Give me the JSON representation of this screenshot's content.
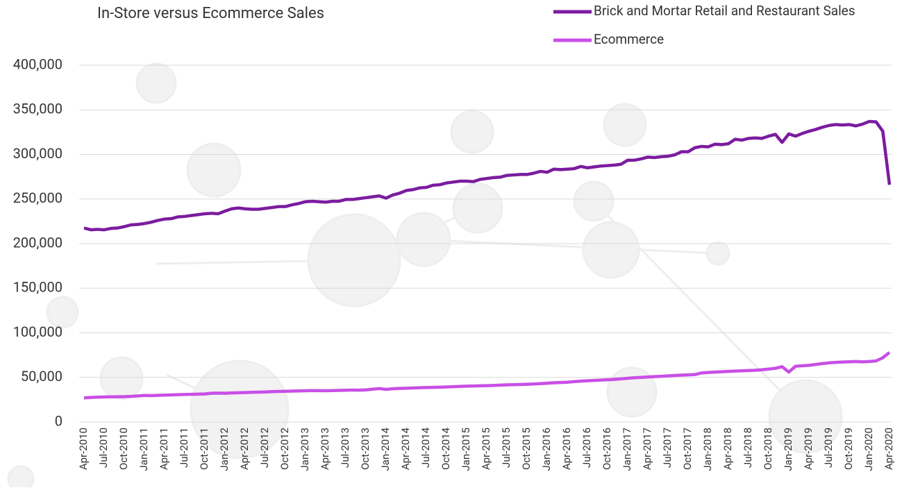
{
  "chart_data": {
    "type": "line",
    "title": "In-Store versus Ecommerce Sales",
    "categories": [
      "Apr-2010",
      null,
      null,
      "Jul-2010",
      null,
      null,
      "Oct-2010",
      null,
      null,
      "Jan-2011",
      null,
      null,
      "Apr-2011",
      null,
      null,
      "Jul-2011",
      null,
      null,
      "Oct-2011",
      null,
      null,
      "Jan-2012",
      null,
      null,
      "Apr-2012",
      null,
      null,
      "Jul-2012",
      null,
      null,
      "Oct-2012",
      null,
      null,
      "Jan-2013",
      null,
      null,
      "Apr-2013",
      null,
      null,
      "Jul-2013",
      null,
      null,
      "Oct-2013",
      null,
      null,
      "Jan-2014",
      null,
      null,
      "Apr-2014",
      null,
      null,
      "Jul-2014",
      null,
      null,
      "Oct-2014",
      null,
      null,
      "Jan-2015",
      null,
      null,
      "Apr-2015",
      null,
      null,
      "Jul-2015",
      null,
      null,
      "Oct-2015",
      null,
      null,
      "Jan-2016",
      null,
      null,
      "Apr-2016",
      null,
      null,
      "Jul-2016",
      null,
      null,
      "Oct-2016",
      null,
      null,
      "Jan-2017",
      null,
      null,
      "Apr-2017",
      null,
      null,
      "Jul-2017",
      null,
      null,
      "Oct-2017",
      null,
      null,
      "Jan-2018",
      null,
      null,
      "Apr-2018",
      null,
      null,
      "Jul-2018",
      null,
      null,
      "Oct-2018",
      null,
      null,
      "Jan-2019",
      null,
      null,
      "Apr-2019",
      null,
      null,
      "Jul-2019",
      null,
      null,
      "Oct-2019",
      null,
      null,
      "Jan-2020",
      null,
      null,
      "Apr-2020"
    ],
    "series": [
      {
        "name": "Brick and Mortar Retail and Restaurant Sales",
        "color": "#7b1ca0",
        "values": [
          217500,
          215500,
          216000,
          215500,
          217000,
          217500,
          219000,
          221000,
          221500,
          222500,
          224000,
          226000,
          227500,
          228000,
          230000,
          230500,
          231500,
          232500,
          233500,
          234000,
          233500,
          236500,
          239000,
          240000,
          239000,
          238500,
          238500,
          239500,
          240500,
          241500,
          241500,
          243500,
          245000,
          247000,
          247500,
          247000,
          246500,
          247500,
          247500,
          249500,
          249500,
          250500,
          251500,
          252500,
          253500,
          251000,
          254500,
          256500,
          259500,
          260500,
          262500,
          263000,
          265500,
          266000,
          268000,
          269000,
          270000,
          270000,
          269500,
          272000,
          273000,
          274000,
          274500,
          276500,
          277000,
          277500,
          277500,
          279000,
          281000,
          280000,
          283500,
          283000,
          283500,
          284000,
          286500,
          285000,
          286000,
          287000,
          287500,
          288000,
          289000,
          293500,
          293500,
          295000,
          297000,
          296500,
          297500,
          298000,
          299500,
          303000,
          303000,
          307500,
          309000,
          308500,
          311500,
          311000,
          312000,
          317000,
          316000,
          318000,
          318500,
          318000,
          320500,
          322500,
          313500,
          323000,
          320500,
          323500,
          326000,
          328000,
          330500,
          332500,
          333500,
          333000,
          333500,
          332000,
          334000,
          337000,
          336500,
          326000,
          266000
        ]
      },
      {
        "name": "Ecommerce",
        "color": "#c84fe6",
        "values": [
          27000,
          27500,
          27800,
          28000,
          28200,
          28300,
          28400,
          28700,
          29200,
          29800,
          29600,
          29900,
          30200,
          30400,
          30600,
          30800,
          31000,
          31200,
          31400,
          32200,
          32400,
          32200,
          32600,
          32800,
          33000,
          33300,
          33500,
          33700,
          34000,
          34200,
          34400,
          34600,
          34800,
          35000,
          35200,
          35100,
          35000,
          35200,
          35400,
          35600,
          35800,
          35700,
          36000,
          36800,
          37500,
          36600,
          37300,
          37600,
          37800,
          38100,
          38400,
          38600,
          38800,
          39000,
          39300,
          39600,
          39900,
          40200,
          40400,
          40600,
          40800,
          41000,
          41300,
          41600,
          41800,
          42000,
          42300,
          42600,
          43000,
          43500,
          44000,
          44300,
          44600,
          45200,
          45800,
          46200,
          46600,
          47000,
          47400,
          47800,
          48300,
          49000,
          49600,
          50000,
          50500,
          50900,
          51300,
          51700,
          52100,
          52500,
          52800,
          53200,
          55000,
          55500,
          55900,
          56300,
          56700,
          57100,
          57400,
          57700,
          58000,
          58600,
          59300,
          60200,
          62000,
          56000,
          62500,
          63000,
          63500,
          64500,
          65500,
          66300,
          66800,
          67200,
          67500,
          67800,
          67400,
          67800,
          68500,
          72000,
          78000
        ]
      }
    ],
    "ylim": [
      0,
      400000
    ],
    "yticks": [
      0,
      {
        "value": 50000,
        "label": "50,000"
      },
      {
        "value": 100000,
        "label": "100,000"
      },
      {
        "value": 150000,
        "label": "150,000"
      },
      {
        "value": 200000,
        "label": "200,000"
      },
      {
        "value": 250000,
        "label": "250,000"
      },
      {
        "value": 300000,
        "label": "300,000"
      },
      {
        "value": 350000,
        "label": "350,000"
      },
      {
        "value": 400000,
        "label": "400,000"
      }
    ],
    "grid": true
  }
}
